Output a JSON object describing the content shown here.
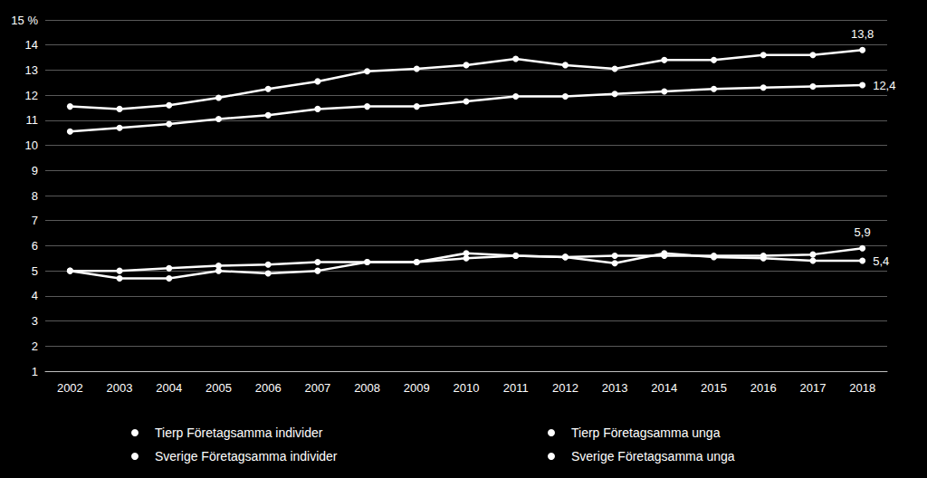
{
  "chart_data": {
    "type": "line",
    "categories": [
      "2002",
      "2003",
      "2004",
      "2005",
      "2006",
      "2007",
      "2008",
      "2009",
      "2010",
      "2011",
      "2012",
      "2013",
      "2014",
      "2015",
      "2016",
      "2017",
      "2018"
    ],
    "series": [
      {
        "name": "Tierp Företagsamma individer",
        "color": "#ffffff",
        "marker": "circle",
        "values": [
          11.55,
          11.45,
          11.6,
          11.9,
          12.25,
          12.55,
          12.95,
          13.05,
          13.2,
          13.45,
          13.2,
          13.05,
          13.4,
          13.4,
          13.6,
          13.6,
          13.8
        ],
        "value_labels": [
          null,
          null,
          null,
          null,
          null,
          null,
          null,
          null,
          null,
          null,
          null,
          null,
          null,
          null,
          null,
          null,
          "13,8"
        ]
      },
      {
        "name": "Tierp Företagsamma unga",
        "color": "#ffffff",
        "marker": "circle",
        "values": [
          5.0,
          5.0,
          5.1,
          5.2,
          5.25,
          5.35,
          5.35,
          5.35,
          5.5,
          5.6,
          5.55,
          5.6,
          5.6,
          5.6,
          5.6,
          5.65,
          5.9
        ],
        "value_labels": [
          null,
          null,
          null,
          null,
          null,
          null,
          null,
          null,
          null,
          null,
          null,
          null,
          null,
          null,
          null,
          null,
          "5,9"
        ]
      },
      {
        "name": "Sverige Företagsamma individer",
        "color": "#ffffff",
        "marker": "circle",
        "values": [
          10.55,
          10.7,
          10.85,
          11.05,
          11.2,
          11.45,
          11.55,
          11.55,
          11.75,
          11.95,
          11.95,
          12.05,
          12.15,
          12.25,
          12.3,
          12.35,
          12.4
        ],
        "value_labels": [
          null,
          null,
          null,
          null,
          null,
          null,
          null,
          null,
          null,
          null,
          null,
          null,
          null,
          null,
          null,
          null,
          "12,4"
        ]
      },
      {
        "name": "Sverige Företagsamma unga",
        "color": "#ffffff",
        "marker": "circle",
        "values": [
          5.0,
          4.7,
          4.7,
          5.0,
          4.9,
          5.0,
          5.35,
          5.35,
          5.7,
          5.6,
          5.55,
          5.3,
          5.7,
          5.55,
          5.5,
          5.4,
          5.4
        ],
        "value_labels": [
          null,
          null,
          null,
          null,
          null,
          null,
          null,
          null,
          null,
          null,
          null,
          null,
          null,
          null,
          null,
          null,
          "5,4"
        ]
      }
    ],
    "ylim": [
      1,
      15
    ],
    "yticks": [
      1,
      2,
      3,
      4,
      5,
      6,
      7,
      8,
      9,
      10,
      11,
      12,
      13,
      14,
      {
        "value": 15,
        "label": "15 %"
      }
    ],
    "grid": true,
    "legend": "bottom"
  }
}
